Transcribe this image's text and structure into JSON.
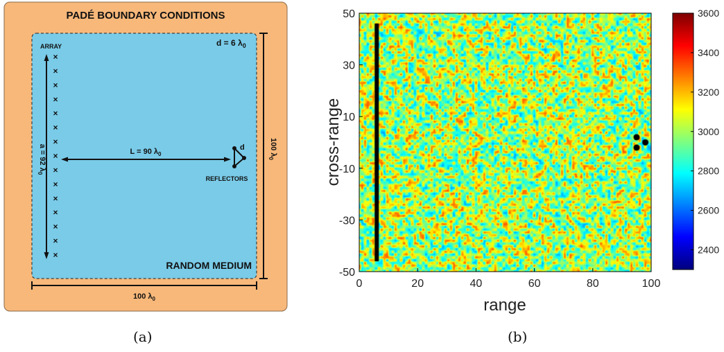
{
  "diagram": {
    "boundary_title": "PADÉ BOUNDARY CONDITIONS",
    "array_label": "ARRAY",
    "d_spec": "d = 6 λ0",
    "aperture_label": "a = 92 λ0",
    "distance_label": "L = 90 λ0",
    "reflector_d_label": "d",
    "reflectors_label": "REFLECTORS",
    "medium_label": "RANDOM MEDIUM",
    "width_label": "100 λ0",
    "height_label": "100 λ0",
    "array_elements": 15,
    "colors": {
      "boundary": "#f7b87a",
      "medium": "#79cbe8",
      "ink": "#111111"
    }
  },
  "chart_data": {
    "type": "heatmap",
    "title": "",
    "xlabel": "range",
    "ylabel": "cross-range",
    "xlim": [
      0,
      100
    ],
    "ylim": [
      -50,
      50
    ],
    "xticks": [
      0,
      20,
      40,
      60,
      80,
      100
    ],
    "yticks": [
      50,
      30,
      10,
      -10,
      -30,
      -50
    ],
    "colorbar": {
      "min": 2300,
      "max": 3600,
      "ticks": [
        3600,
        3400,
        3200,
        3000,
        2800,
        2600,
        2400
      ],
      "colormap": "jet"
    },
    "array": {
      "range": 6,
      "cross_range": [
        -46,
        46
      ]
    },
    "reflectors": [
      {
        "range": 95,
        "cross_range": 2
      },
      {
        "range": 98,
        "cross_range": 0
      },
      {
        "range": 95,
        "cross_range": -2
      }
    ]
  },
  "captions": {
    "a": "(a)",
    "b": "(b)"
  }
}
